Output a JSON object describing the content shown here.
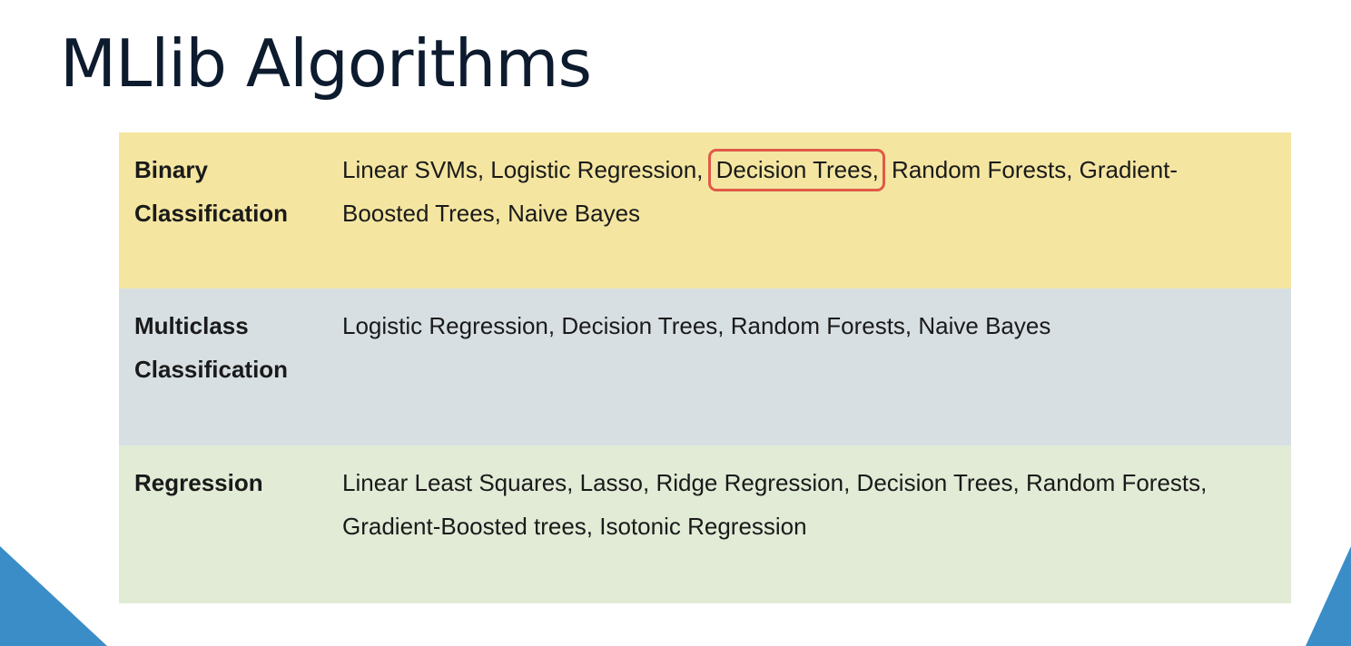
{
  "title": "MLlib Algorithms",
  "table": {
    "rows": [
      {
        "label_line1": "Binary",
        "label_line2": "Classification",
        "algos_before": "Linear SVMs, Logistic Regression, ",
        "algos_highlight": "Decision Trees,",
        "algos_after": " Random Forests, Gradient-Boosted Trees, Naive Bayes"
      },
      {
        "label_line1": "Multiclass",
        "label_line2": "Classification",
        "algos": "Logistic Regression, Decision Trees, Random Forests, Naive Bayes"
      },
      {
        "label_line1": "Regression",
        "algos": "Linear Least Squares, Lasso, Ridge Regression, Decision Trees, Random Forests, Gradient-Boosted trees, Isotonic Regression"
      }
    ]
  },
  "colors": {
    "binary_row": "#f4e6a1",
    "multiclass_row": "#d7dfe3",
    "regression_row": "#e1ebd6",
    "highlight_border": "#e05a47",
    "corner_accent": "#3b8dc8"
  }
}
